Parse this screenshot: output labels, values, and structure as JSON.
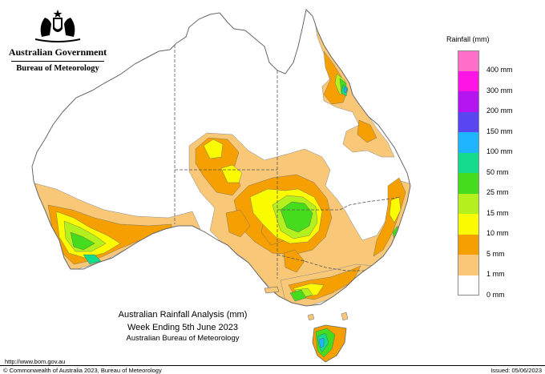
{
  "branding": {
    "government": "Australian Government",
    "agency": "Bureau of Meteorology",
    "logo_icon": "coat-of-arms-icon"
  },
  "map": {
    "title": "Australian Rainfall Analysis (mm)",
    "subtitle": "Week Ending 5th June 2023",
    "source": "Australian Bureau of Meteorology"
  },
  "legend": {
    "title": "Rainfall (mm)",
    "items": [
      {
        "label": "400 mm",
        "color": "#ff6ec7"
      },
      {
        "label": "300 mm",
        "color": "#ff14e6"
      },
      {
        "label": "200 mm",
        "color": "#b414f0"
      },
      {
        "label": "150 mm",
        "color": "#5a46f0"
      },
      {
        "label": "100 mm",
        "color": "#1eb4ff"
      },
      {
        "label": "50 mm",
        "color": "#14dc8c"
      },
      {
        "label": "25 mm",
        "color": "#46dc1e"
      },
      {
        "label": "15 mm",
        "color": "#b4f01e"
      },
      {
        "label": "10 mm",
        "color": "#fafa00"
      },
      {
        "label": "5 mm",
        "color": "#f5a000"
      },
      {
        "label": "1 mm",
        "color": "#f8c878"
      },
      {
        "label": "0 mm",
        "color": "#ffffff"
      }
    ]
  },
  "footer": {
    "url": "http://www.bom.gov.au",
    "copyright": "© Commonwealth of Australia 2023, Bureau of Meteorology",
    "issued": "Issued: 05/06/2023"
  }
}
